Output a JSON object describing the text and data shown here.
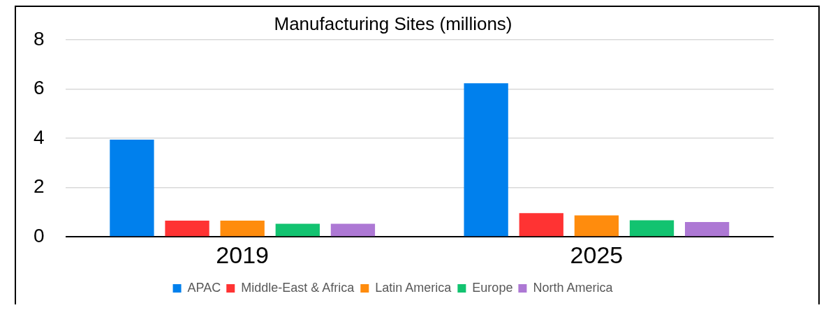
{
  "chart_data": {
    "type": "bar",
    "title": "Manufacturing Sites (millions)",
    "categories": [
      "2019",
      "2025"
    ],
    "series": [
      {
        "name": "APAC",
        "color": "#0080ed",
        "values": [
          3.95,
          6.24
        ]
      },
      {
        "name": "Middle-East & Africa",
        "color": "#ff3333",
        "values": [
          0.66,
          0.96
        ]
      },
      {
        "name": "Latin America",
        "color": "#ff8c0d",
        "values": [
          0.66,
          0.87
        ]
      },
      {
        "name": "Europe",
        "color": "#12c370",
        "values": [
          0.53,
          0.67
        ]
      },
      {
        "name": "North America",
        "color": "#ad78d4",
        "values": [
          0.53,
          0.6
        ]
      }
    ],
    "ylim": [
      0,
      8
    ],
    "yticks": [
      0,
      2,
      4,
      6,
      8
    ],
    "grid": "y",
    "legend": "bottom"
  }
}
